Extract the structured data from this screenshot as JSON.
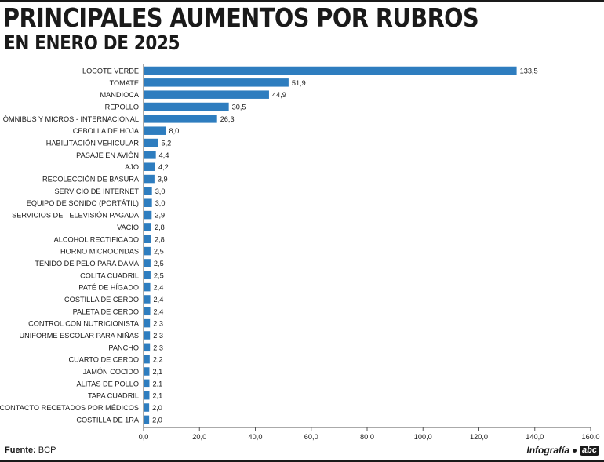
{
  "header": {
    "title": "PRINCIPALES AUMENTOS POR RUBROS",
    "subtitle": "EN ENERO DE 2025"
  },
  "footer": {
    "source_label": "Fuente:",
    "source_value": "BCP",
    "credit": "Infografía",
    "logo_text": "abc"
  },
  "colors": {
    "bar": "#2e7dbf",
    "axis": "#555555",
    "text": "#1a1a1a"
  },
  "chart_data": {
    "type": "bar",
    "orientation": "horizontal",
    "categories": [
      "LOCOTE VERDE",
      "TOMATE",
      "MANDIOCA",
      "REPOLLO",
      "ÓMNIBUS Y MICROS - INTERNACIONAL",
      "CEBOLLA DE HOJA",
      "HABILITACIÓN VEHICULAR",
      "PASAJE EN AVIÓN",
      "AJO",
      "RECOLECCIÓN DE BASURA",
      "SERVICIO DE INTERNET",
      "EQUIPO DE SONIDO (PORTÁTIL)",
      "SERVICIOS DE TELEVISIÓN PAGADA",
      "VACÍO",
      "ALCOHOL RECTIFICADO",
      "HORNO MICROONDAS",
      "TEÑIDO DE PELO PARA DAMA",
      "COLITA CUADRIL",
      "PATÉ DE HÍGADO",
      "COSTILLA DE CERDO",
      "PALETA DE CERDO",
      "CONTROL CON NUTRICIONISTA",
      "UNIFORME ESCOLAR PARA NIÑAS",
      "PANCHO",
      "CUARTO DE CERDO",
      "JAMÓN COCIDO",
      "ALITAS DE POLLO",
      "TAPA CUADRIL",
      "LENTES DE CONTACTO RECETADOS POR MÉDICOS",
      "COSTILLA DE 1RA"
    ],
    "values": [
      133.5,
      51.9,
      44.9,
      30.5,
      26.3,
      8.0,
      5.2,
      4.4,
      4.2,
      3.9,
      3.0,
      3.0,
      2.9,
      2.8,
      2.8,
      2.5,
      2.5,
      2.5,
      2.4,
      2.4,
      2.4,
      2.3,
      2.3,
      2.3,
      2.2,
      2.1,
      2.1,
      2.1,
      2.0,
      2.0
    ],
    "value_labels": [
      "133,5",
      "51,9",
      "44,9",
      "30,5",
      "26,3",
      "8,0",
      "5,2",
      "4,4",
      "4,2",
      "3,9",
      "3,0",
      "3,0",
      "2,9",
      "2,8",
      "2,8",
      "2,5",
      "2,5",
      "2,5",
      "2,4",
      "2,4",
      "2,4",
      "2,3",
      "2,3",
      "2,3",
      "2,2",
      "2,1",
      "2,1",
      "2,1",
      "2,0",
      "2,0"
    ],
    "xlim": [
      0,
      160
    ],
    "xticks": [
      0,
      20,
      40,
      60,
      80,
      100,
      120,
      140,
      160
    ],
    "xtick_labels": [
      "0,0",
      "20,0",
      "40,0",
      "60,0",
      "80,0",
      "100,0",
      "120,0",
      "140,0",
      "160,0"
    ],
    "grid": false,
    "legend": "none"
  }
}
